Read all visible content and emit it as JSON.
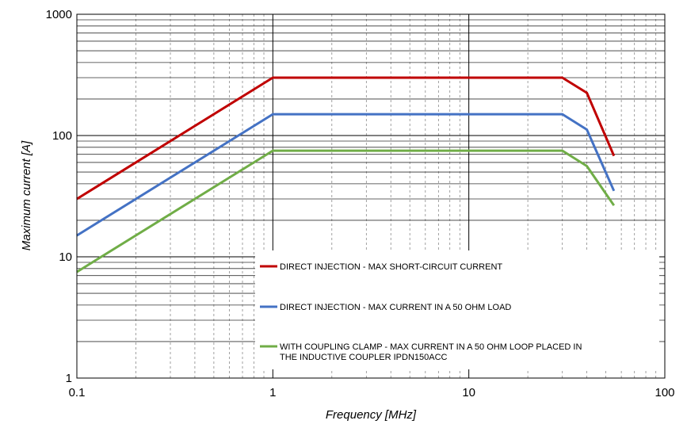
{
  "chart_data": {
    "type": "line",
    "title": "",
    "xlabel": "Frequency [MHz]",
    "ylabel": "Maximum current  [A]",
    "x_scale": "log",
    "y_scale": "log",
    "xlim": [
      0.1,
      100
    ],
    "ylim": [
      1,
      1000
    ],
    "grid": true,
    "legend_position": "bottom-right",
    "x_ticks": [
      {
        "value": 0.1,
        "label": "0.1"
      },
      {
        "value": 1,
        "label": "1"
      },
      {
        "value": 10,
        "label": "10"
      },
      {
        "value": 100,
        "label": "100"
      }
    ],
    "y_ticks": [
      {
        "value": 1,
        "label": "1"
      },
      {
        "value": 10,
        "label": "10"
      },
      {
        "value": 100,
        "label": "100"
      },
      {
        "value": 1000,
        "label": "1000"
      }
    ],
    "series": [
      {
        "name": "DIRECT INJECTION - MAX SHORT-CIRCUIT CURRENT",
        "color": "#c00000",
        "points": [
          [
            0.1,
            30
          ],
          [
            1,
            300
          ],
          [
            30,
            300
          ],
          [
            40,
            225
          ],
          [
            55,
            68
          ]
        ]
      },
      {
        "name": "DIRECT INJECTION - MAX CURRENT IN A 50 OHM LOAD",
        "color": "#4472c4",
        "points": [
          [
            0.1,
            15
          ],
          [
            1,
            150
          ],
          [
            30,
            150
          ],
          [
            40,
            112
          ],
          [
            55,
            35
          ]
        ]
      },
      {
        "name": "WITH COUPLING CLAMP - MAX CURRENT IN A 50 OHM LOOP PLACED IN THE INDUCTIVE COUPLER IPDN150ACC",
        "color": "#70ad47",
        "points": [
          [
            0.1,
            7.5
          ],
          [
            1,
            75
          ],
          [
            30,
            75
          ],
          [
            40,
            56
          ],
          [
            55,
            26.5
          ]
        ]
      }
    ]
  },
  "legend": {
    "entries": [
      {
        "lines": [
          "DIRECT INJECTION - MAX SHORT-CIRCUIT CURRENT"
        ]
      },
      {
        "lines": [
          "DIRECT INJECTION - MAX CURRENT IN A 50 OHM LOAD"
        ]
      },
      {
        "lines": [
          "WITH COUPLING CLAMP - MAX CURRENT IN A 50 OHM LOOP PLACED IN",
          "THE INDUCTIVE COUPLER IPDN150ACC"
        ]
      }
    ]
  }
}
